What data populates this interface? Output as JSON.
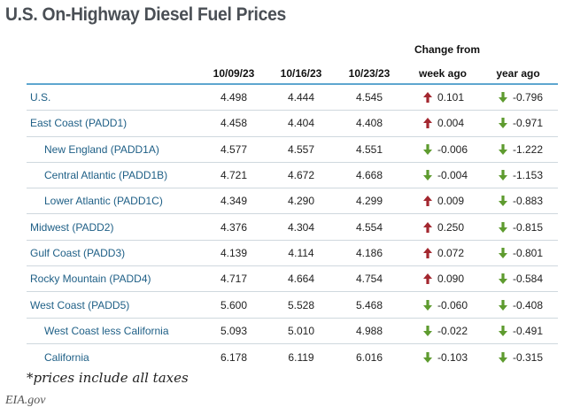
{
  "title": "U.S. On-Highway Diesel Fuel Prices",
  "footnote": "*prices include all taxes",
  "source": "EIA.gov",
  "colors": {
    "up": "#a3272f",
    "down": "#5e9b2f",
    "region_text": "#1e5f86",
    "rule": "#5ea6cf"
  },
  "chart_data": {
    "type": "table",
    "title": "U.S. On-Highway Diesel Fuel Prices",
    "group_header": "Change from",
    "columns": [
      "10/09/23",
      "10/16/23",
      "10/23/23",
      "week ago",
      "year ago"
    ],
    "rows": [
      {
        "region": "U.S.",
        "indent": false,
        "values": [
          "4.498",
          "4.444",
          "4.545"
        ],
        "week": {
          "dir": "up",
          "val": "0.101"
        },
        "year": {
          "dir": "down",
          "val": "-0.796"
        }
      },
      {
        "region": "East Coast (PADD1)",
        "indent": false,
        "values": [
          "4.458",
          "4.404",
          "4.408"
        ],
        "week": {
          "dir": "up",
          "val": "0.004"
        },
        "year": {
          "dir": "down",
          "val": "-0.971"
        }
      },
      {
        "region": "New England (PADD1A)",
        "indent": true,
        "values": [
          "4.577",
          "4.557",
          "4.551"
        ],
        "week": {
          "dir": "down",
          "val": "-0.006"
        },
        "year": {
          "dir": "down",
          "val": "-1.222"
        }
      },
      {
        "region": "Central Atlantic (PADD1B)",
        "indent": true,
        "values": [
          "4.721",
          "4.672",
          "4.668"
        ],
        "week": {
          "dir": "down",
          "val": "-0.004"
        },
        "year": {
          "dir": "down",
          "val": "-1.153"
        }
      },
      {
        "region": "Lower Atlantic (PADD1C)",
        "indent": true,
        "values": [
          "4.349",
          "4.290",
          "4.299"
        ],
        "week": {
          "dir": "up",
          "val": "0.009"
        },
        "year": {
          "dir": "down",
          "val": "-0.883"
        }
      },
      {
        "region": "Midwest (PADD2)",
        "indent": false,
        "values": [
          "4.376",
          "4.304",
          "4.554"
        ],
        "week": {
          "dir": "up",
          "val": "0.250"
        },
        "year": {
          "dir": "down",
          "val": "-0.815"
        }
      },
      {
        "region": "Gulf Coast (PADD3)",
        "indent": false,
        "values": [
          "4.139",
          "4.114",
          "4.186"
        ],
        "week": {
          "dir": "up",
          "val": "0.072"
        },
        "year": {
          "dir": "down",
          "val": "-0.801"
        }
      },
      {
        "region": "Rocky Mountain (PADD4)",
        "indent": false,
        "values": [
          "4.717",
          "4.664",
          "4.754"
        ],
        "week": {
          "dir": "up",
          "val": "0.090"
        },
        "year": {
          "dir": "down",
          "val": "-0.584"
        }
      },
      {
        "region": "West Coast (PADD5)",
        "indent": false,
        "values": [
          "5.600",
          "5.528",
          "5.468"
        ],
        "week": {
          "dir": "down",
          "val": "-0.060"
        },
        "year": {
          "dir": "down",
          "val": "-0.408"
        }
      },
      {
        "region": "West Coast less California",
        "indent": true,
        "values": [
          "5.093",
          "5.010",
          "4.988"
        ],
        "week": {
          "dir": "down",
          "val": "-0.022"
        },
        "year": {
          "dir": "down",
          "val": "-0.491"
        }
      },
      {
        "region": "California",
        "indent": true,
        "values": [
          "6.178",
          "6.119",
          "6.016"
        ],
        "week": {
          "dir": "down",
          "val": "-0.103"
        },
        "year": {
          "dir": "down",
          "val": "-0.315"
        }
      }
    ]
  }
}
